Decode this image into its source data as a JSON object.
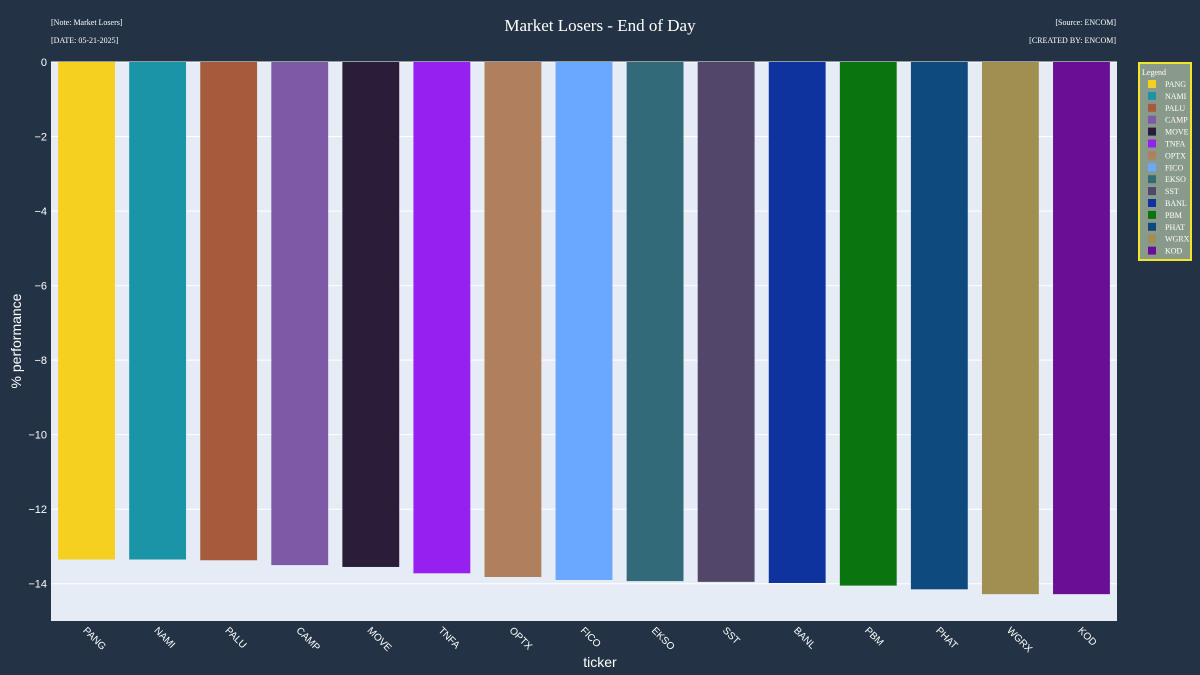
{
  "header": {
    "note": "[Note: Market Losers]",
    "date": "[DATE: 05-21-2025]",
    "source": "[Source: ENCOM]",
    "created_by": "[CREATED BY: ENCOM]"
  },
  "chart_data": {
    "type": "bar",
    "title": "Market Losers - End of Day",
    "xlabel": "ticker",
    "ylabel": "% performance",
    "categories": [
      "PANG",
      "NAMI",
      "PALU",
      "CAMP",
      "MOVE",
      "TNFA",
      "OPTX",
      "FICO",
      "EKSO",
      "SST",
      "BANL",
      "PBM",
      "PHAT",
      "WGRX",
      "KOD"
    ],
    "values": [
      -13.35,
      -13.35,
      -13.37,
      -13.5,
      -13.55,
      -13.72,
      -13.82,
      -13.9,
      -13.93,
      -13.95,
      -13.98,
      -14.05,
      -14.15,
      -14.28,
      -14.28
    ],
    "colors": [
      "#f6d01f",
      "#1a94a6",
      "#a65b3c",
      "#7e5aa6",
      "#2b1c3a",
      "#9620ef",
      "#b07f5e",
      "#6aa7ff",
      "#336a79",
      "#52466a",
      "#0e329e",
      "#0a750f",
      "#0f4a7f",
      "#a18f52",
      "#6a0f95"
    ],
    "ylim": [
      -15,
      0
    ],
    "yticks": [
      0,
      -2,
      -4,
      -6,
      -8,
      -10,
      -12,
      -14
    ],
    "ytick_labels": [
      "0",
      "−2",
      "−4",
      "−6",
      "−8",
      "−10",
      "−12",
      "−14"
    ],
    "grid": true,
    "legend": {
      "title": "Legend",
      "position": "top-right",
      "border_color": "#f5e52a",
      "background": "#8a9a8a"
    },
    "plot_background": "#e5ecf6",
    "page_background": "#233345"
  }
}
